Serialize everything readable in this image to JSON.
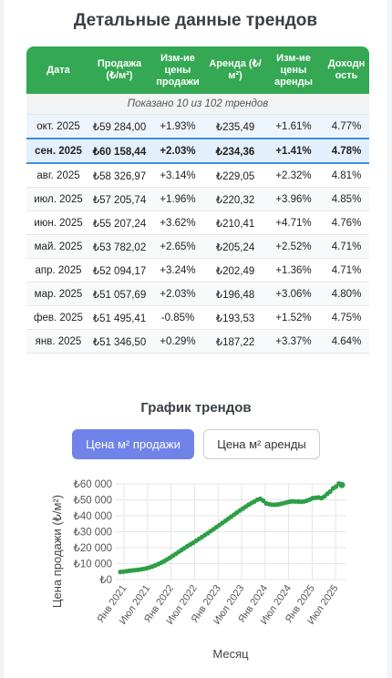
{
  "title": "Детальные данные трендов",
  "table": {
    "headers": [
      "Дата",
      "Продажа (₺/м²)",
      "Изм-ие цены продажи",
      "Аренда (₺/м²)",
      "Изм-ие цены аренды",
      "Доходн ость"
    ],
    "info": "Показано 10 из 102 трендов",
    "rows": [
      {
        "date": "окт. 2025",
        "sale": "₺59 284,00",
        "sale_change": "+1.93%",
        "rent": "₺235,49",
        "rent_change": "+1.61%",
        "yield": "4.77%"
      },
      {
        "date": "сен. 2025",
        "sale": "₺60 158,44",
        "sale_change": "+2.03%",
        "rent": "₺234,36",
        "rent_change": "+1.41%",
        "yield": "4.78%"
      },
      {
        "date": "авг. 2025",
        "sale": "₺58 326,97",
        "sale_change": "+3.14%",
        "rent": "₺229,05",
        "rent_change": "+2.32%",
        "yield": "4.81%"
      },
      {
        "date": "июл. 2025",
        "sale": "₺57 205,74",
        "sale_change": "+1.96%",
        "rent": "₺220,32",
        "rent_change": "+3.96%",
        "yield": "4.85%"
      },
      {
        "date": "июн. 2025",
        "sale": "₺55 207,24",
        "sale_change": "+3.62%",
        "rent": "₺210,41",
        "rent_change": "+4.71%",
        "yield": "4.76%"
      },
      {
        "date": "май. 2025",
        "sale": "₺53 782,02",
        "sale_change": "+2.65%",
        "rent": "₺205,24",
        "rent_change": "+2.52%",
        "yield": "4.71%"
      },
      {
        "date": "апр. 2025",
        "sale": "₺52 094,17",
        "sale_change": "+3.24%",
        "rent": "₺202,49",
        "rent_change": "+1.36%",
        "yield": "4.71%"
      },
      {
        "date": "мар. 2025",
        "sale": "₺51 057,69",
        "sale_change": "+2.03%",
        "rent": "₺196,48",
        "rent_change": "+3.06%",
        "yield": "4.80%"
      },
      {
        "date": "фев. 2025",
        "sale": "₺51 495,41",
        "sale_change": "-0.85%",
        "rent": "₺193,53",
        "rent_change": "+1.52%",
        "yield": "4.75%"
      },
      {
        "date": "янв. 2025",
        "sale": "₺51 346,50",
        "sale_change": "+0.29%",
        "rent": "₺187,22",
        "rent_change": "+3.37%",
        "yield": "4.64%"
      }
    ]
  },
  "chart_section": {
    "title": "График трендов",
    "btn_sale": "Цена м² продажи",
    "btn_rent": "Цена м² аренды"
  },
  "colors": {
    "header_green": "#34a853",
    "point_green": "#2e9e46",
    "button_active": "#6f83e8",
    "highlight_border": "#3b8fd9"
  },
  "chart_data": {
    "type": "scatter",
    "xlabel": "Месяц",
    "ylabel": "Цена продажи (₺/м²)",
    "ylim": [
      0,
      60000
    ],
    "y_ticks": [
      "₺0",
      "₺10 000",
      "₺20 000",
      "₺30 000",
      "₺40 000",
      "₺50 000",
      "₺60 000"
    ],
    "x_ticks": [
      "Янв 2021",
      "Июл 2021",
      "Янв 2022",
      "Июл 2022",
      "Янв 2023",
      "Июл 2023",
      "Янв 2024",
      "Июл 2024",
      "Янв 2025",
      "Июл 2025"
    ],
    "grid": true,
    "legend": "none",
    "series": [
      {
        "values": [
          4800,
          5000,
          5200,
          5500,
          5700,
          5900,
          6100,
          6400,
          6700,
          7100,
          7600,
          8200,
          8900,
          9700,
          10600,
          11500,
          12600,
          13700,
          14900,
          16100,
          17300,
          18500,
          19700,
          20900,
          22000,
          23100,
          24300,
          25500,
          26700,
          27900,
          29100,
          30400,
          31600,
          32900,
          34200,
          35500,
          36800,
          38100,
          39400,
          40700,
          42000,
          43300,
          44500,
          45700,
          46900,
          48000,
          49000,
          50100,
          50600,
          49500,
          47800,
          47300,
          47000,
          46900,
          47100,
          47500,
          47900,
          48400,
          48800,
          49100,
          49000,
          48900,
          48800,
          49000,
          49500,
          50200,
          51100,
          51300,
          51500,
          51100,
          52100,
          53800,
          55200,
          57200,
          58300,
          60200,
          59300
        ]
      }
    ]
  }
}
